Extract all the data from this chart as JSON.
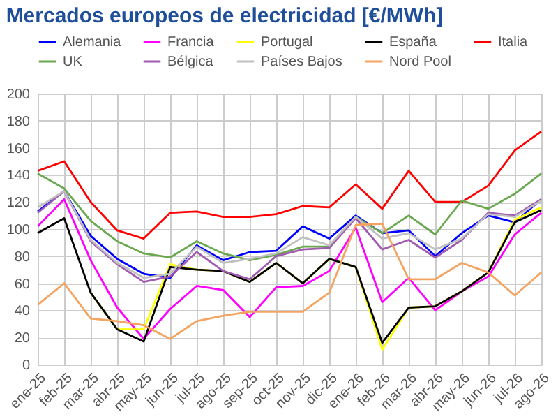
{
  "chart_data": {
    "type": "line",
    "title": "Mercados europeos de electricidad [€/MWh]",
    "categories": [
      "ene-25",
      "feb-25",
      "mar-25",
      "abr-25",
      "may-25",
      "jun-25",
      "jul-25",
      "ago-25",
      "sep-25",
      "oct-25",
      "nov-25",
      "dic-25",
      "ene-26",
      "feb-26",
      "mar-26",
      "abr-26",
      "may-26",
      "jun-26",
      "jul-26",
      "ago-26"
    ],
    "series": [
      {
        "name": "Alemania",
        "color": "#0000ff",
        "values": [
          113,
          128,
          95,
          78,
          67,
          64,
          88,
          77,
          83,
          84,
          102,
          93,
          110,
          97,
          99,
          80,
          97,
          110,
          105,
          122
        ]
      },
      {
        "name": "Francia",
        "color": "#ff00ff",
        "values": [
          102,
          122,
          77,
          42,
          19,
          41,
          58,
          55,
          35,
          57,
          58,
          69,
          101,
          46,
          64,
          40,
          54,
          65,
          96,
          112
        ]
      },
      {
        "name": "Portugal",
        "color": "#ffff00",
        "values": [
          null,
          null,
          53,
          26,
          26,
          74,
          70,
          69,
          61,
          75,
          60,
          78,
          72,
          11,
          42,
          43,
          54,
          68,
          107,
          116
        ]
      },
      {
        "name": "España",
        "color": "#000000",
        "values": [
          97,
          108,
          53,
          26,
          17,
          72,
          70,
          69,
          61,
          75,
          60,
          78,
          72,
          16,
          42,
          43,
          54,
          68,
          105,
          114
        ]
      },
      {
        "name": "Italia",
        "color": "#ff0000",
        "values": [
          143,
          150,
          120,
          99,
          93,
          112,
          113,
          109,
          109,
          111,
          117,
          116,
          133,
          115,
          143,
          120,
          120,
          132,
          158,
          172
        ]
      },
      {
        "name": "UK",
        "color": "#6aa84f",
        "values": [
          141,
          130,
          106,
          91,
          82,
          79,
          91,
          82,
          77,
          81,
          87,
          87,
          109,
          97,
          110,
          96,
          121,
          115,
          126,
          141
        ]
      },
      {
        "name": "Bélgica",
        "color": "#a05ab0",
        "values": [
          112,
          128,
          91,
          74,
          61,
          65,
          83,
          69,
          63,
          80,
          85,
          86,
          108,
          85,
          92,
          79,
          92,
          112,
          110,
          122
        ]
      },
      {
        "name": "Países Bajos",
        "color": "#c0c0c0",
        "values": [
          116,
          128,
          92,
          75,
          64,
          67,
          87,
          75,
          78,
          82,
          94,
          88,
          109,
          93,
          97,
          85,
          93,
          111,
          109,
          121
        ]
      },
      {
        "name": "Nord Pool",
        "color": "#f4a460",
        "values": [
          44,
          60,
          34,
          32,
          29,
          19,
          32,
          36,
          39,
          39,
          39,
          53,
          103,
          104,
          63,
          63,
          75,
          68,
          51,
          68
        ]
      }
    ],
    "ylim": [
      0,
      200
    ],
    "yticks": [
      0,
      20,
      40,
      60,
      80,
      100,
      120,
      140,
      160,
      180,
      200
    ],
    "grid": true,
    "legend": "top",
    "marker": "none",
    "line_style": "solid"
  }
}
